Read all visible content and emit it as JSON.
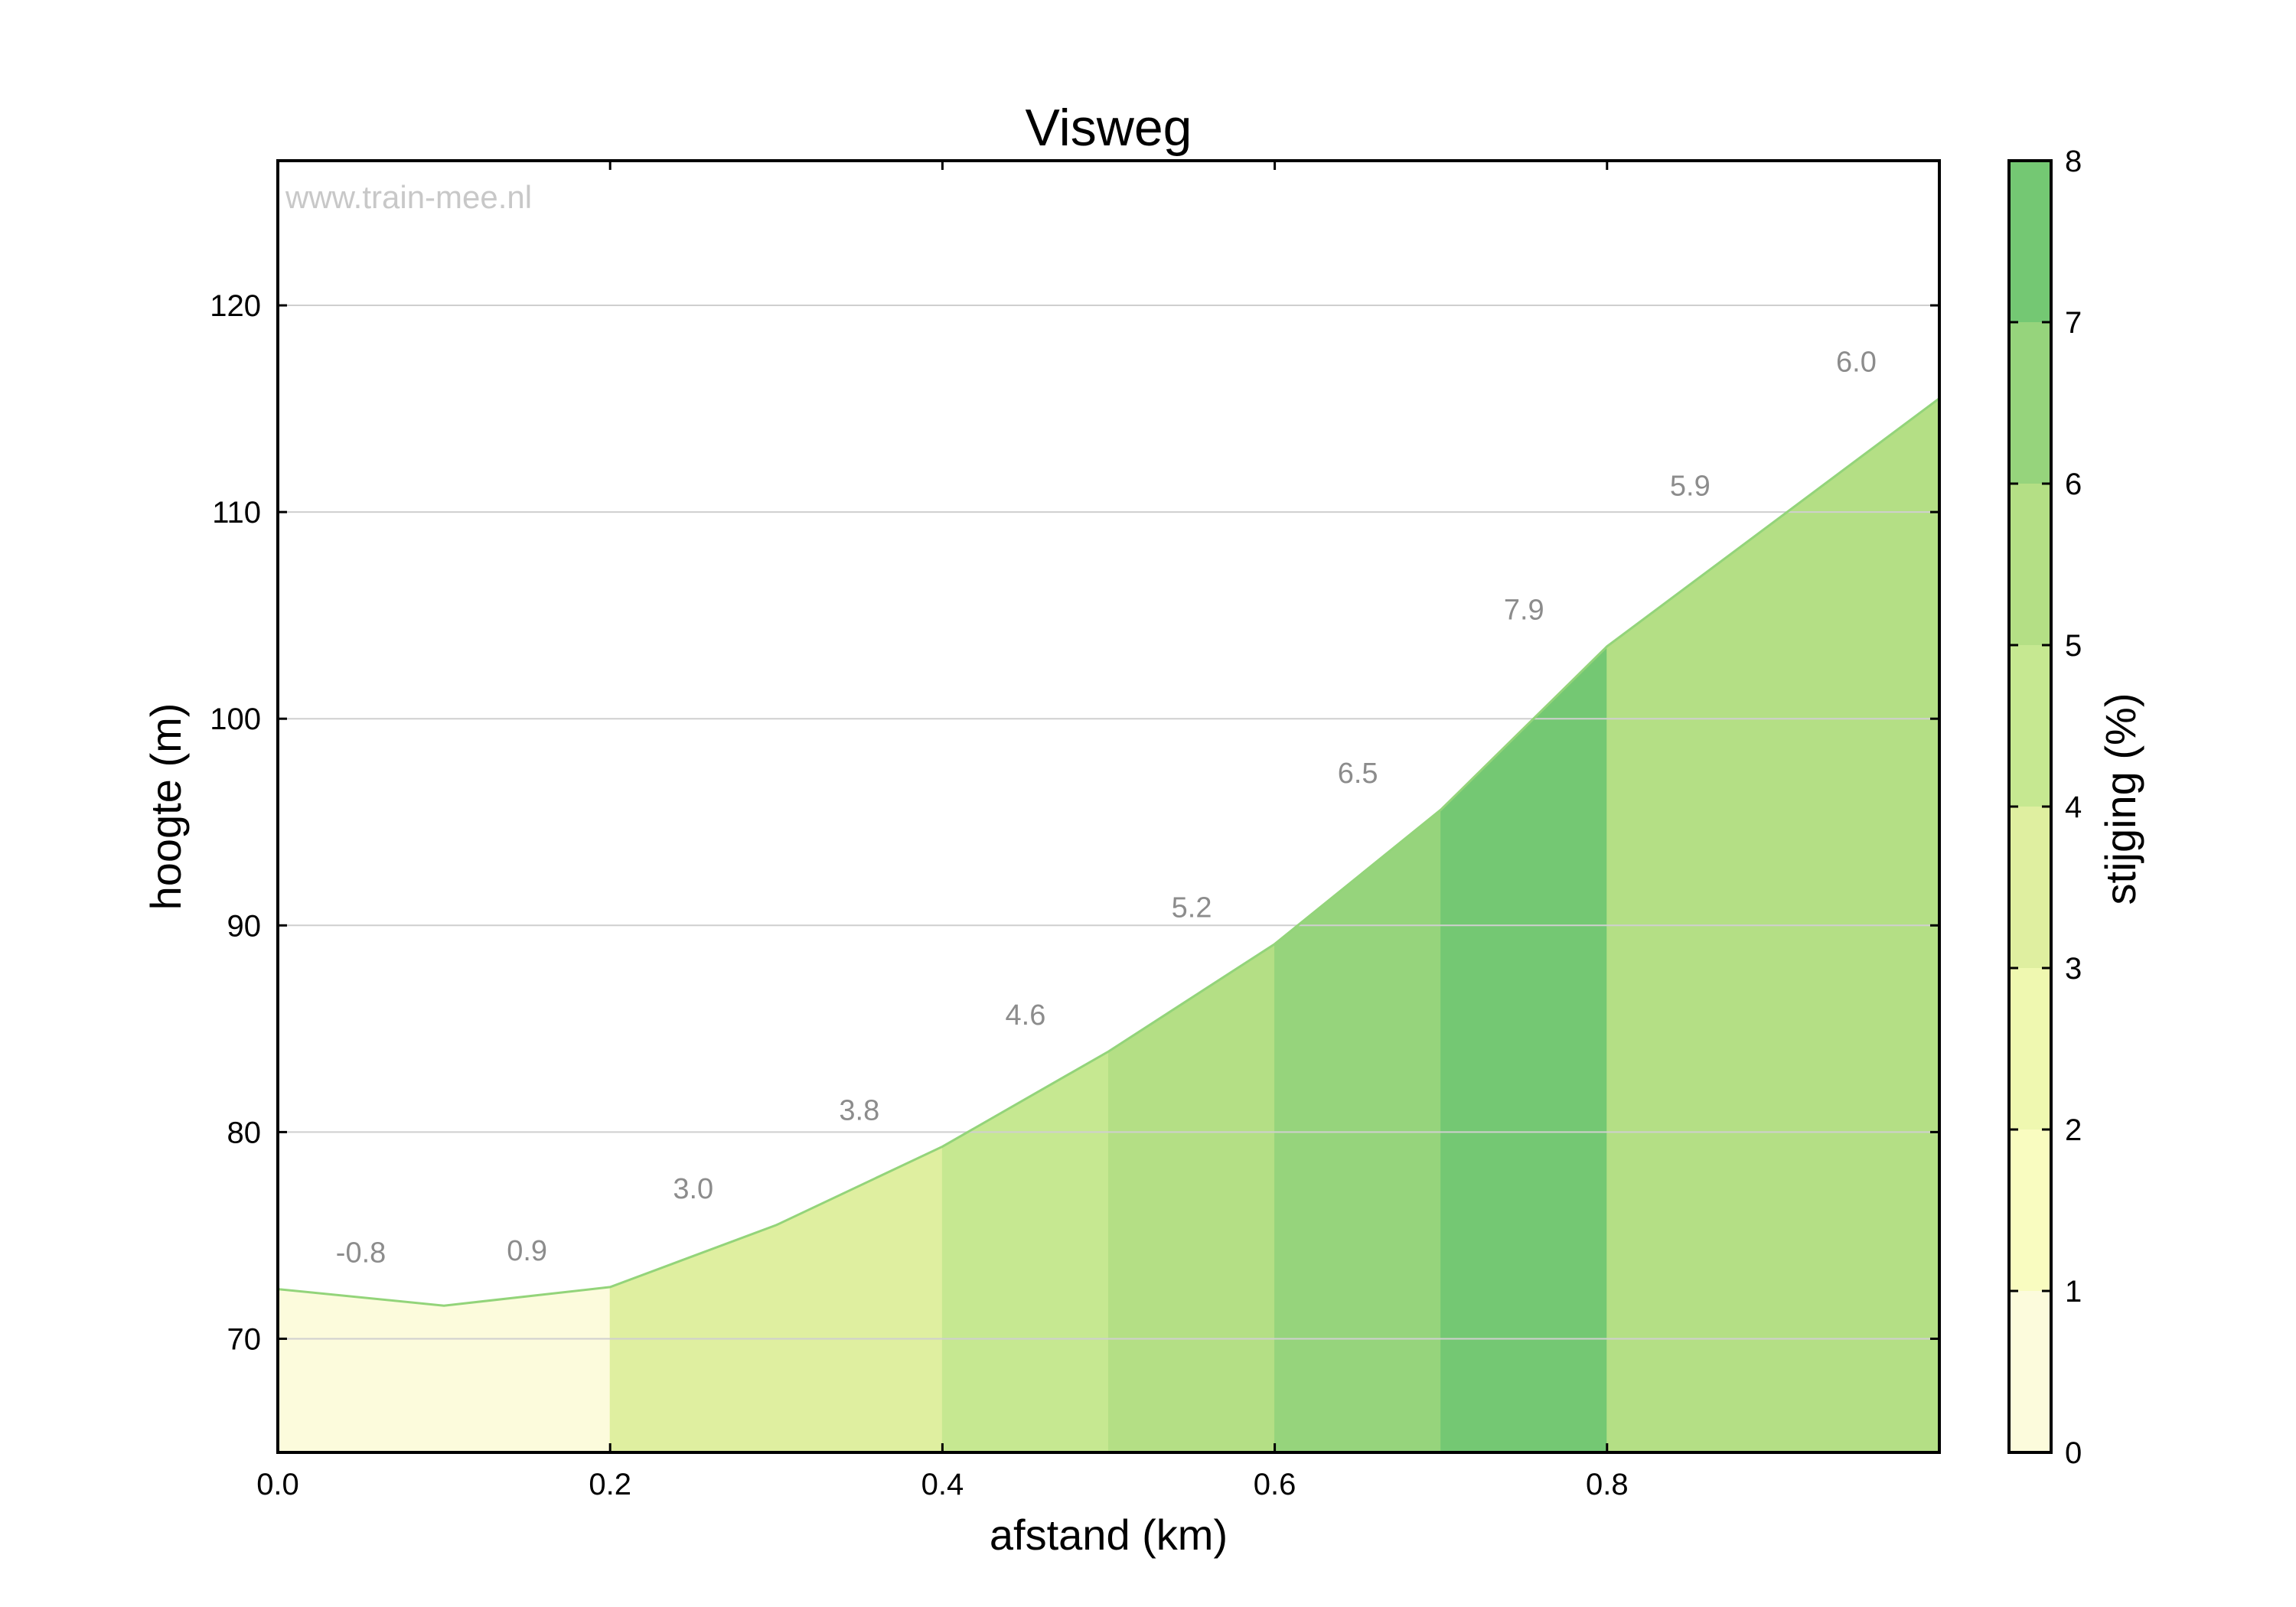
{
  "chart_data": {
    "type": "area",
    "title": "Visweg",
    "xlabel": "afstand (km)",
    "ylabel": "hoogte (m)",
    "watermark": "www.train-mee.nl",
    "xlim": [
      0,
      1.0
    ],
    "ylim": [
      64.5,
      127
    ],
    "x_ticks": [
      "0.0",
      "0.2",
      "0.4",
      "0.6",
      "0.8"
    ],
    "y_ticks": [
      "70",
      "80",
      "90",
      "100",
      "110",
      "120"
    ],
    "grid": true,
    "x": [
      0.0,
      0.1,
      0.2,
      0.3,
      0.4,
      0.5,
      0.6,
      0.7,
      0.8,
      1.0
    ],
    "elevation": [
      72.4,
      71.6,
      72.5,
      75.5,
      79.3,
      83.9,
      89.1,
      95.6,
      103.5,
      115.5
    ],
    "segments": [
      {
        "x0": 0.0,
        "x1": 0.1,
        "label": "-0.8",
        "grade": -0.8
      },
      {
        "x0": 0.1,
        "x1": 0.2,
        "label": "0.9",
        "grade": 0.9
      },
      {
        "x0": 0.2,
        "x1": 0.3,
        "label": "3.0",
        "grade": 3.0
      },
      {
        "x0": 0.3,
        "x1": 0.4,
        "label": "3.8",
        "grade": 3.8
      },
      {
        "x0": 0.4,
        "x1": 0.5,
        "label": "4.6",
        "grade": 4.6
      },
      {
        "x0": 0.5,
        "x1": 0.6,
        "label": "5.2",
        "grade": 5.2
      },
      {
        "x0": 0.6,
        "x1": 0.7,
        "label": "6.5",
        "grade": 6.5
      },
      {
        "x0": 0.7,
        "x1": 0.8,
        "label": "7.9",
        "grade": 7.9
      },
      {
        "x0": 0.8,
        "x1": 0.9,
        "label": "5.9",
        "grade": 5.9
      },
      {
        "x0": 0.9,
        "x1": 1.0,
        "label": "6.0",
        "grade": 6.0
      }
    ],
    "fill_segments": [
      {
        "x0": 0.0,
        "x1": 0.2,
        "color": "#fcfbdc"
      },
      {
        "x0": 0.2,
        "x1": 0.4,
        "color": "#dfefa0"
      },
      {
        "x0": 0.4,
        "x1": 0.5,
        "color": "#c6e891"
      },
      {
        "x0": 0.5,
        "x1": 0.6,
        "color": "#b4df85"
      },
      {
        "x0": 0.6,
        "x1": 0.7,
        "color": "#96d47c"
      },
      {
        "x0": 0.7,
        "x1": 0.8,
        "color": "#74c873"
      },
      {
        "x0": 0.8,
        "x1": 1.0,
        "color": "#b4df85"
      }
    ],
    "line_color": "#93d47a",
    "colorbar": {
      "label": "stijging (%)",
      "range": [
        0,
        8
      ],
      "ticks": [
        "0",
        "1",
        "2",
        "3",
        "4",
        "5",
        "6",
        "7",
        "8"
      ],
      "colors": [
        "#fcfbdc",
        "#f9fcc0",
        "#eff8b0",
        "#dfefa0",
        "#c6e891",
        "#b4df85",
        "#96d47c",
        "#74c873"
      ]
    }
  }
}
